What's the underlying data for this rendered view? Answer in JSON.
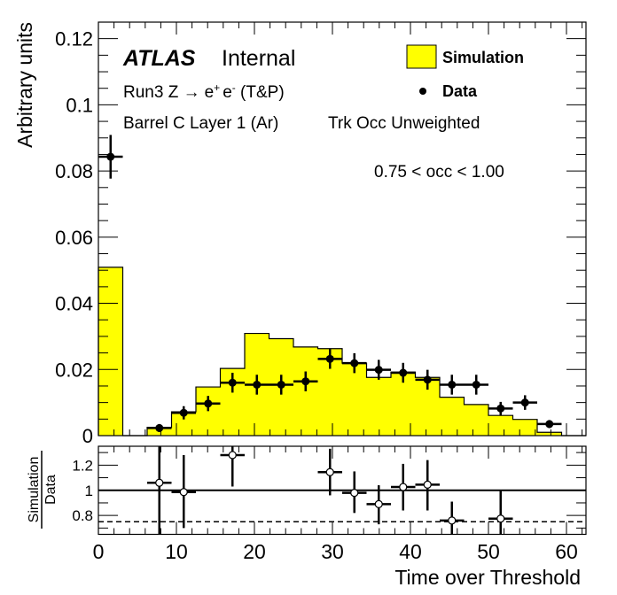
{
  "chart_data": [
    {
      "type": "bar",
      "panel": "main",
      "title": "",
      "xlabel": "",
      "ylabel": "Arbitrary units",
      "xlim": [
        0,
        62.5
      ],
      "ylim": [
        0,
        0.125
      ],
      "yticks": [
        0,
        0.02,
        0.04,
        0.06,
        0.08,
        0.1,
        0.12
      ],
      "ytick_labels": [
        "0",
        "0.02",
        "0.04",
        "0.06",
        "0.08",
        "0.1",
        "0.12"
      ],
      "bin_edges": [
        0,
        3.125,
        6.25,
        9.375,
        12.5,
        15.625,
        18.75,
        21.875,
        25,
        28.125,
        31.25,
        34.375,
        37.5,
        40.625,
        43.75,
        46.875,
        50,
        53.125,
        56.25,
        59.375,
        62.5
      ],
      "series": [
        {
          "name": "Simulation",
          "kind": "filled-histogram",
          "color": "#ffff00",
          "values": [
            0.0509,
            0,
            0.0025,
            0.0072,
            0.0147,
            0.0203,
            0.0309,
            0.0293,
            0.0268,
            0.0263,
            0.0219,
            0.0176,
            0.0192,
            0.0176,
            0.0116,
            0.0094,
            0.0061,
            0.0049,
            0.001,
            0
          ]
        },
        {
          "name": "Data",
          "kind": "points-with-errors",
          "color": "#000000",
          "x": [
            1.5625,
            7.8125,
            10.9375,
            14.0625,
            17.1875,
            20.3125,
            23.4375,
            26.5625,
            29.6875,
            32.8125,
            35.9375,
            39.0625,
            42.1875,
            45.3125,
            48.4375,
            51.5625,
            54.6875,
            57.8125
          ],
          "y": [
            0.0843,
            0.0023,
            0.0069,
            0.0097,
            0.016,
            0.0154,
            0.0154,
            0.0164,
            0.0232,
            0.0219,
            0.0199,
            0.019,
            0.0169,
            0.0154,
            0.0154,
            0.0082,
            0.01,
            0.0035
          ],
          "yerr": [
            0.0066,
            0.0012,
            0.002,
            0.0023,
            0.003,
            0.003,
            0.003,
            0.003,
            0.003,
            0.003,
            0.003,
            0.003,
            0.003,
            0.003,
            0.003,
            0.002,
            0.0022,
            0.0012
          ]
        }
      ],
      "legend": {
        "placement": "top-right",
        "entries": [
          {
            "label": "Simulation",
            "symbol": "filled-box",
            "color": "#ffff00"
          },
          {
            "label": "Data",
            "symbol": "marker",
            "color": "#000000"
          }
        ]
      },
      "annotations": {
        "atlas": "ATLAS",
        "atlas_status": "Internal",
        "process_prefix": "Run3 Z ",
        "process_arrow": "→",
        "process_e": "e",
        "process_plus": "+",
        "process_minus": "-",
        "process_suffix": " (T&P)",
        "region": "Barrel C Layer 1 (Ar)",
        "weighting": "Trk Occ Unweighted",
        "occupancy_range": "0.75 < occ < 1.00"
      },
      "grid": false
    },
    {
      "type": "scatter",
      "panel": "ratio",
      "xlabel": "Time over Threshold",
      "ylabel_numerator": "Simulation",
      "ylabel_denominator": "Data",
      "xlim": [
        0,
        62.5
      ],
      "ylim": [
        0.65,
        1.35
      ],
      "xticks": [
        0,
        10,
        20,
        30,
        40,
        50,
        60
      ],
      "xtick_labels": [
        "0",
        "10",
        "20",
        "30",
        "40",
        "50",
        "60"
      ],
      "yticks": [
        0.8,
        1.0,
        1.2
      ],
      "ytick_labels": [
        "0.8",
        "1",
        "1.2"
      ],
      "reference_line": 1.0,
      "dashed_line": 0.75,
      "x": [
        7.8125,
        10.9375,
        17.1875,
        29.6875,
        32.8125,
        35.9375,
        39.0625,
        42.1875,
        45.3125,
        51.5625
      ],
      "y": [
        1.06,
        0.986,
        1.28,
        1.144,
        0.98,
        0.89,
        1.026,
        1.045,
        0.76,
        0.775
      ],
      "y_low": [
        0.5,
        0.7,
        1.03,
        0.96,
        0.82,
        0.73,
        0.84,
        0.84,
        0.5,
        0.5
      ],
      "y_high": [
        1.6,
        1.28,
        1.4,
        1.33,
        1.15,
        1.04,
        1.21,
        1.24,
        0.91,
        1.0
      ],
      "grid": false
    }
  ]
}
